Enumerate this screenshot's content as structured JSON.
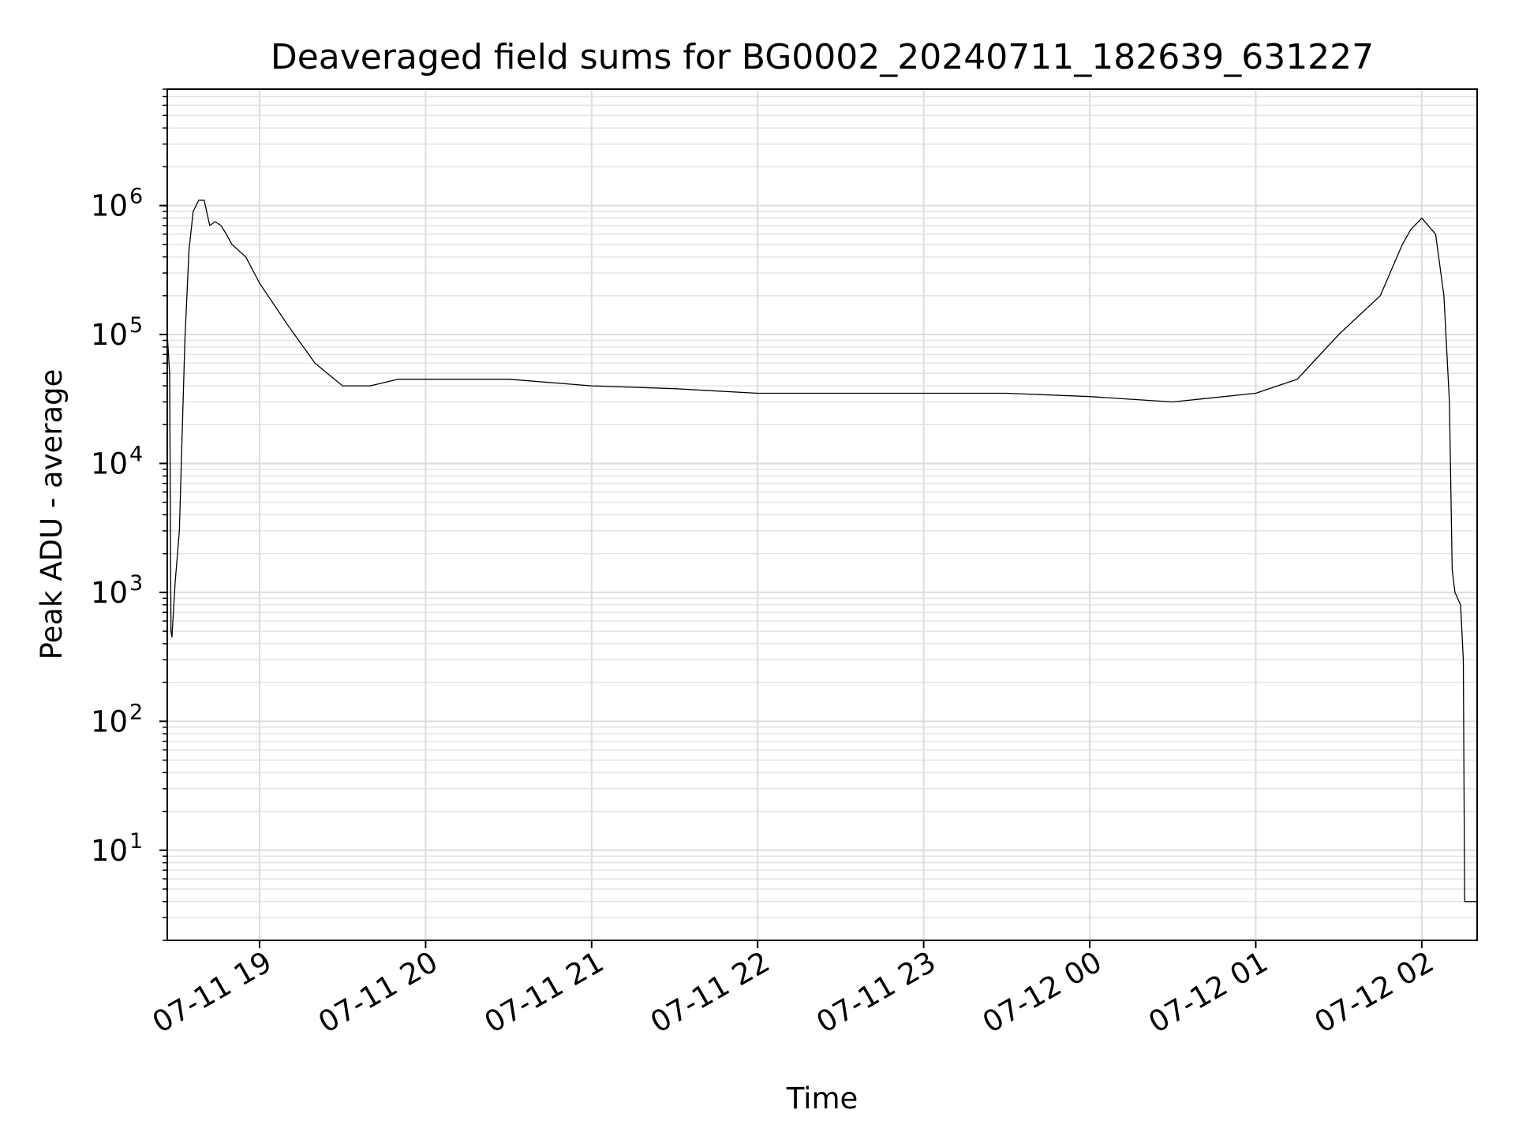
{
  "chart_data": {
    "type": "line",
    "title": "Deaveraged field sums for BG0002_20240711_182639_631227",
    "xlabel": "Time",
    "ylabel": "Peak ADU - average",
    "yscale": "log",
    "ylim": [
      2,
      8000000
    ],
    "xlim": [
      "2024-07-11 18:26:39",
      "2024-07-12 02:20:00"
    ],
    "grid": true,
    "line_color": "#000000",
    "y_ticks": [
      {
        "base": "10",
        "exp": "1",
        "value": 10
      },
      {
        "base": "10",
        "exp": "2",
        "value": 100
      },
      {
        "base": "10",
        "exp": "3",
        "value": 1000
      },
      {
        "base": "10",
        "exp": "4",
        "value": 10000
      },
      {
        "base": "10",
        "exp": "5",
        "value": 100000
      },
      {
        "base": "10",
        "exp": "6",
        "value": 1000000
      }
    ],
    "x_ticks": [
      {
        "label": "07-11 19",
        "time": "2024-07-11 19:00"
      },
      {
        "label": "07-11 20",
        "time": "2024-07-11 20:00"
      },
      {
        "label": "07-11 21",
        "time": "2024-07-11 21:00"
      },
      {
        "label": "07-11 22",
        "time": "2024-07-11 22:00"
      },
      {
        "label": "07-11 23",
        "time": "2024-07-11 23:00"
      },
      {
        "label": "07-12 00",
        "time": "2024-07-12 00:00"
      },
      {
        "label": "07-12 01",
        "time": "2024-07-12 01:00"
      },
      {
        "label": "07-12 02",
        "time": "2024-07-12 02:00"
      }
    ],
    "series": [
      {
        "x": [
          "2024-07-11 18:26:39",
          "2024-07-11 18:27:30",
          "2024-07-11 18:28:00",
          "2024-07-11 18:28:20",
          "2024-07-11 18:29:30",
          "2024-07-11 18:31:00",
          "2024-07-11 18:33:00",
          "2024-07-11 18:34:30",
          "2024-07-11 18:36:00",
          "2024-07-11 18:38:00",
          "2024-07-11 18:40:00",
          "2024-07-11 18:42:00",
          "2024-07-11 18:44:00",
          "2024-07-11 18:46:00",
          "2024-07-11 18:48:00",
          "2024-07-11 18:50:00",
          "2024-07-11 18:55:00",
          "2024-07-11 19:00:00",
          "2024-07-11 19:10:00",
          "2024-07-11 19:20:00",
          "2024-07-11 19:30:00",
          "2024-07-11 19:40:00",
          "2024-07-11 19:50:00",
          "2024-07-11 20:00:00",
          "2024-07-11 20:30:00",
          "2024-07-11 21:00:00",
          "2024-07-11 21:30:00",
          "2024-07-11 22:00:00",
          "2024-07-11 22:30:00",
          "2024-07-11 23:00:00",
          "2024-07-11 23:30:00",
          "2024-07-12 00:00:00",
          "2024-07-12 00:30:00",
          "2024-07-12 01:00:00",
          "2024-07-12 01:15:00",
          "2024-07-12 01:30:00",
          "2024-07-12 01:45:00",
          "2024-07-12 01:53:00",
          "2024-07-12 01:56:00",
          "2024-07-12 02:00:00",
          "2024-07-12 02:05:00",
          "2024-07-12 02:08:00",
          "2024-07-12 02:10:00",
          "2024-07-12 02:11:00",
          "2024-07-12 02:12:00",
          "2024-07-12 02:14:00",
          "2024-07-12 02:15:00",
          "2024-07-12 02:15:30",
          "2024-07-12 02:20:00"
        ],
        "y": [
          100000,
          50000,
          500,
          450,
          1200,
          3000,
          90000,
          450000,
          900000,
          1100000,
          1100000,
          700000,
          750000,
          700000,
          600000,
          500000,
          400000,
          250000,
          120000,
          60000,
          40000,
          40000,
          45000,
          45000,
          45000,
          40000,
          38000,
          35000,
          35000,
          35000,
          35000,
          33000,
          30000,
          35000,
          45000,
          100000,
          200000,
          500000,
          650000,
          800000,
          600000,
          200000,
          30000,
          1500,
          1000,
          800,
          300,
          4,
          4
        ]
      }
    ]
  }
}
